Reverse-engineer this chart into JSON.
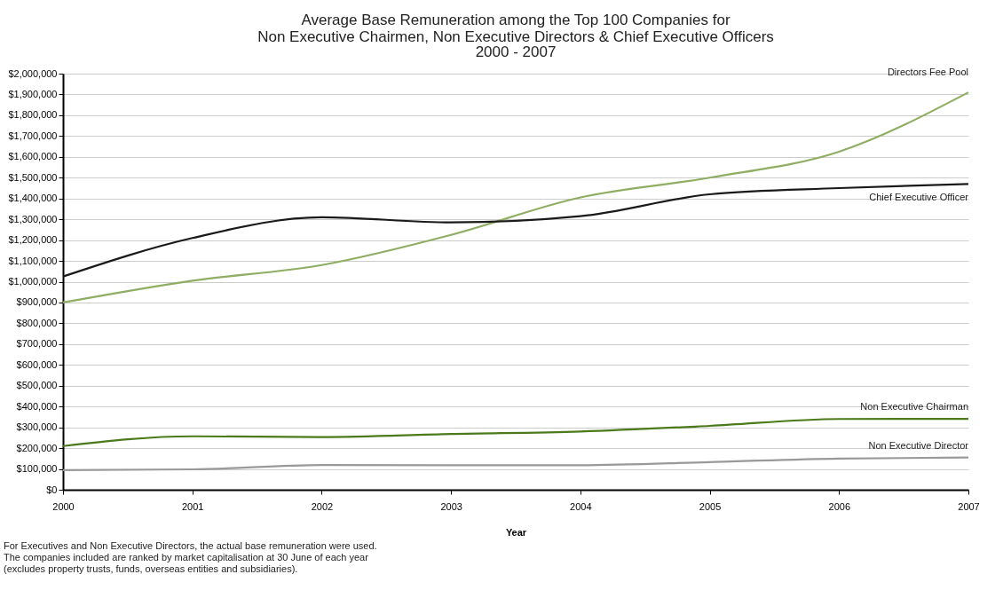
{
  "chart_data": {
    "type": "line",
    "title": "Average Base Remuneration among the Top 100 Companies for\nNon Executive Chairmen, Non Executive Directors & Chief Executive Officers",
    "subtitle": "2000 - 2007",
    "xlabel": "Year",
    "x": [
      2000,
      2001,
      2002,
      2003,
      2004,
      2005,
      2006,
      2007
    ],
    "series": [
      {
        "name": "Directors Fee Pool",
        "color": "#8fae63",
        "values": [
          900000,
          1005000,
          1080000,
          1225000,
          1405000,
          1500000,
          1625000,
          1910000
        ]
      },
      {
        "name": "Chief Executive Officer",
        "color": "#1a1a1a",
        "values": [
          1025000,
          1210000,
          1310000,
          1285000,
          1315000,
          1420000,
          1450000,
          1470000
        ]
      },
      {
        "name": "Non Executive Chairman",
        "color": "#4a7a1a",
        "values": [
          210000,
          257000,
          253000,
          268000,
          280000,
          307000,
          340000,
          341000
        ]
      },
      {
        "name": "Non Executive Director",
        "color": "#999999",
        "values": [
          94000,
          98000,
          119000,
          118000,
          118000,
          133000,
          150000,
          155000
        ]
      }
    ],
    "xlim": [
      2000,
      2007
    ],
    "xticks": [
      2000,
      2001,
      2002,
      2003,
      2004,
      2005,
      2006,
      2007
    ],
    "ylim": [
      0,
      2000000
    ],
    "yticks": [
      {
        "value": 0,
        "label": "$0"
      },
      {
        "value": 100000,
        "label": "$100,000"
      },
      {
        "value": 200000,
        "label": "$200,000"
      },
      {
        "value": 300000,
        "label": "$300,000"
      },
      {
        "value": 400000,
        "label": "$400,000"
      },
      {
        "value": 500000,
        "label": "$500,000"
      },
      {
        "value": 600000,
        "label": "$600,000"
      },
      {
        "value": 700000,
        "label": "$700,000"
      },
      {
        "value": 800000,
        "label": "$800,000"
      },
      {
        "value": 900000,
        "label": "$900,000"
      },
      {
        "value": 1000000,
        "label": "$1,000,000"
      },
      {
        "value": 1100000,
        "label": "$1,100,000"
      },
      {
        "value": 1200000,
        "label": "$1,200,000"
      },
      {
        "value": 1300000,
        "label": "$1,300,000"
      },
      {
        "value": 1400000,
        "label": "$1,400,000"
      },
      {
        "value": 1500000,
        "label": "$1,500,000"
      },
      {
        "value": 1600000,
        "label": "$1,600,000"
      },
      {
        "value": 1700000,
        "label": "$1,700,000"
      },
      {
        "value": 1800000,
        "label": "$1,800,000"
      },
      {
        "value": 1900000,
        "label": "$1,900,000"
      },
      {
        "value": 2000000,
        "label": "$2,000,000"
      }
    ],
    "grid": "y",
    "legend": false,
    "line_style": "solid",
    "annotations": [
      "For Executives and Non Executive Directors, the actual base remuneration were used.",
      "The companies included are ranked by market capitalisation at 30 June of each year",
      "(excludes property trusts, funds, overseas entities and subsidiaries)."
    ]
  }
}
